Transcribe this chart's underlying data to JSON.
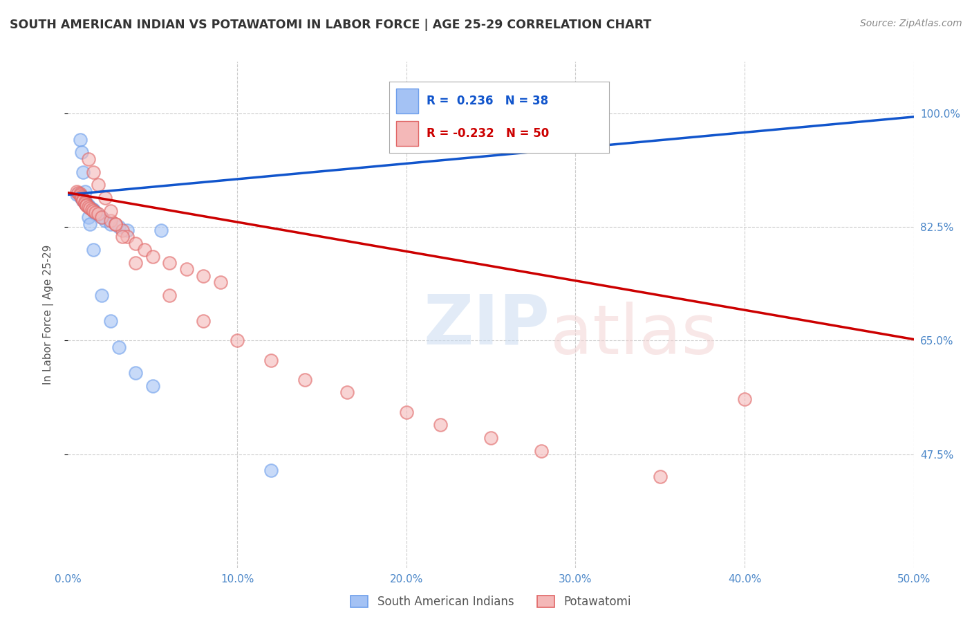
{
  "title": "SOUTH AMERICAN INDIAN VS POTAWATOMI IN LABOR FORCE | AGE 25-29 CORRELATION CHART",
  "source": "Source: ZipAtlas.com",
  "ylabel": "In Labor Force | Age 25-29",
  "xlim": [
    0.0,
    0.5
  ],
  "ylim": [
    0.3,
    1.08
  ],
  "xticks": [
    0.0,
    0.1,
    0.2,
    0.3,
    0.4,
    0.5
  ],
  "xticklabels": [
    "0.0%",
    "10.0%",
    "20.0%",
    "30.0%",
    "40.0%",
    "50.0%"
  ],
  "ytick_positions": [
    0.475,
    0.65,
    0.825,
    1.0
  ],
  "ytick_labels": [
    "47.5%",
    "65.0%",
    "82.5%",
    "100.0%"
  ],
  "legend_r_blue": "0.236",
  "legend_n_blue": "38",
  "legend_r_pink": "-0.232",
  "legend_n_pink": "50",
  "blue_color": "#a4c2f4",
  "pink_color": "#f4b8b8",
  "blue_edge_color": "#6d9eeb",
  "pink_edge_color": "#e06666",
  "blue_line_color": "#1155cc",
  "pink_line_color": "#cc0000",
  "blue_scatter_x": [
    0.005,
    0.007,
    0.008,
    0.008,
    0.009,
    0.009,
    0.01,
    0.01,
    0.011,
    0.011,
    0.012,
    0.012,
    0.013,
    0.014,
    0.015,
    0.015,
    0.016,
    0.016,
    0.02,
    0.022,
    0.025,
    0.03,
    0.035,
    0.055,
    0.007,
    0.008,
    0.009,
    0.01,
    0.011,
    0.012,
    0.013,
    0.015,
    0.02,
    0.025,
    0.03,
    0.04,
    0.05,
    0.12
  ],
  "blue_scatter_y": [
    0.875,
    0.873,
    0.871,
    0.869,
    0.868,
    0.866,
    0.865,
    0.863,
    0.862,
    0.86,
    0.858,
    0.856,
    0.855,
    0.853,
    0.852,
    0.85,
    0.848,
    0.846,
    0.84,
    0.835,
    0.83,
    0.825,
    0.82,
    0.82,
    0.96,
    0.94,
    0.91,
    0.88,
    0.86,
    0.84,
    0.83,
    0.79,
    0.72,
    0.68,
    0.64,
    0.6,
    0.58,
    0.45
  ],
  "pink_scatter_x": [
    0.005,
    0.006,
    0.007,
    0.007,
    0.008,
    0.008,
    0.009,
    0.009,
    0.01,
    0.01,
    0.011,
    0.011,
    0.012,
    0.013,
    0.014,
    0.015,
    0.016,
    0.018,
    0.02,
    0.025,
    0.028,
    0.032,
    0.035,
    0.04,
    0.045,
    0.05,
    0.06,
    0.07,
    0.08,
    0.09,
    0.012,
    0.015,
    0.018,
    0.022,
    0.025,
    0.028,
    0.032,
    0.04,
    0.06,
    0.08,
    0.1,
    0.12,
    0.14,
    0.165,
    0.2,
    0.22,
    0.25,
    0.28,
    0.35,
    0.4
  ],
  "pink_scatter_y": [
    0.88,
    0.878,
    0.876,
    0.874,
    0.872,
    0.87,
    0.868,
    0.866,
    0.864,
    0.862,
    0.86,
    0.858,
    0.856,
    0.854,
    0.852,
    0.85,
    0.848,
    0.846,
    0.84,
    0.835,
    0.83,
    0.82,
    0.81,
    0.8,
    0.79,
    0.78,
    0.77,
    0.76,
    0.75,
    0.74,
    0.93,
    0.91,
    0.89,
    0.87,
    0.85,
    0.83,
    0.81,
    0.77,
    0.72,
    0.68,
    0.65,
    0.62,
    0.59,
    0.57,
    0.54,
    0.52,
    0.5,
    0.48,
    0.44,
    0.56
  ],
  "blue_trendline_x": [
    0.0,
    0.5
  ],
  "blue_trendline_y": [
    0.875,
    0.995
  ],
  "pink_trendline_x": [
    0.0,
    0.5
  ],
  "pink_trendline_y": [
    0.878,
    0.652
  ],
  "background_color": "#ffffff",
  "grid_color": "#cccccc",
  "title_color": "#333333",
  "axis_label_color": "#555555",
  "tick_color": "#4a86c8"
}
